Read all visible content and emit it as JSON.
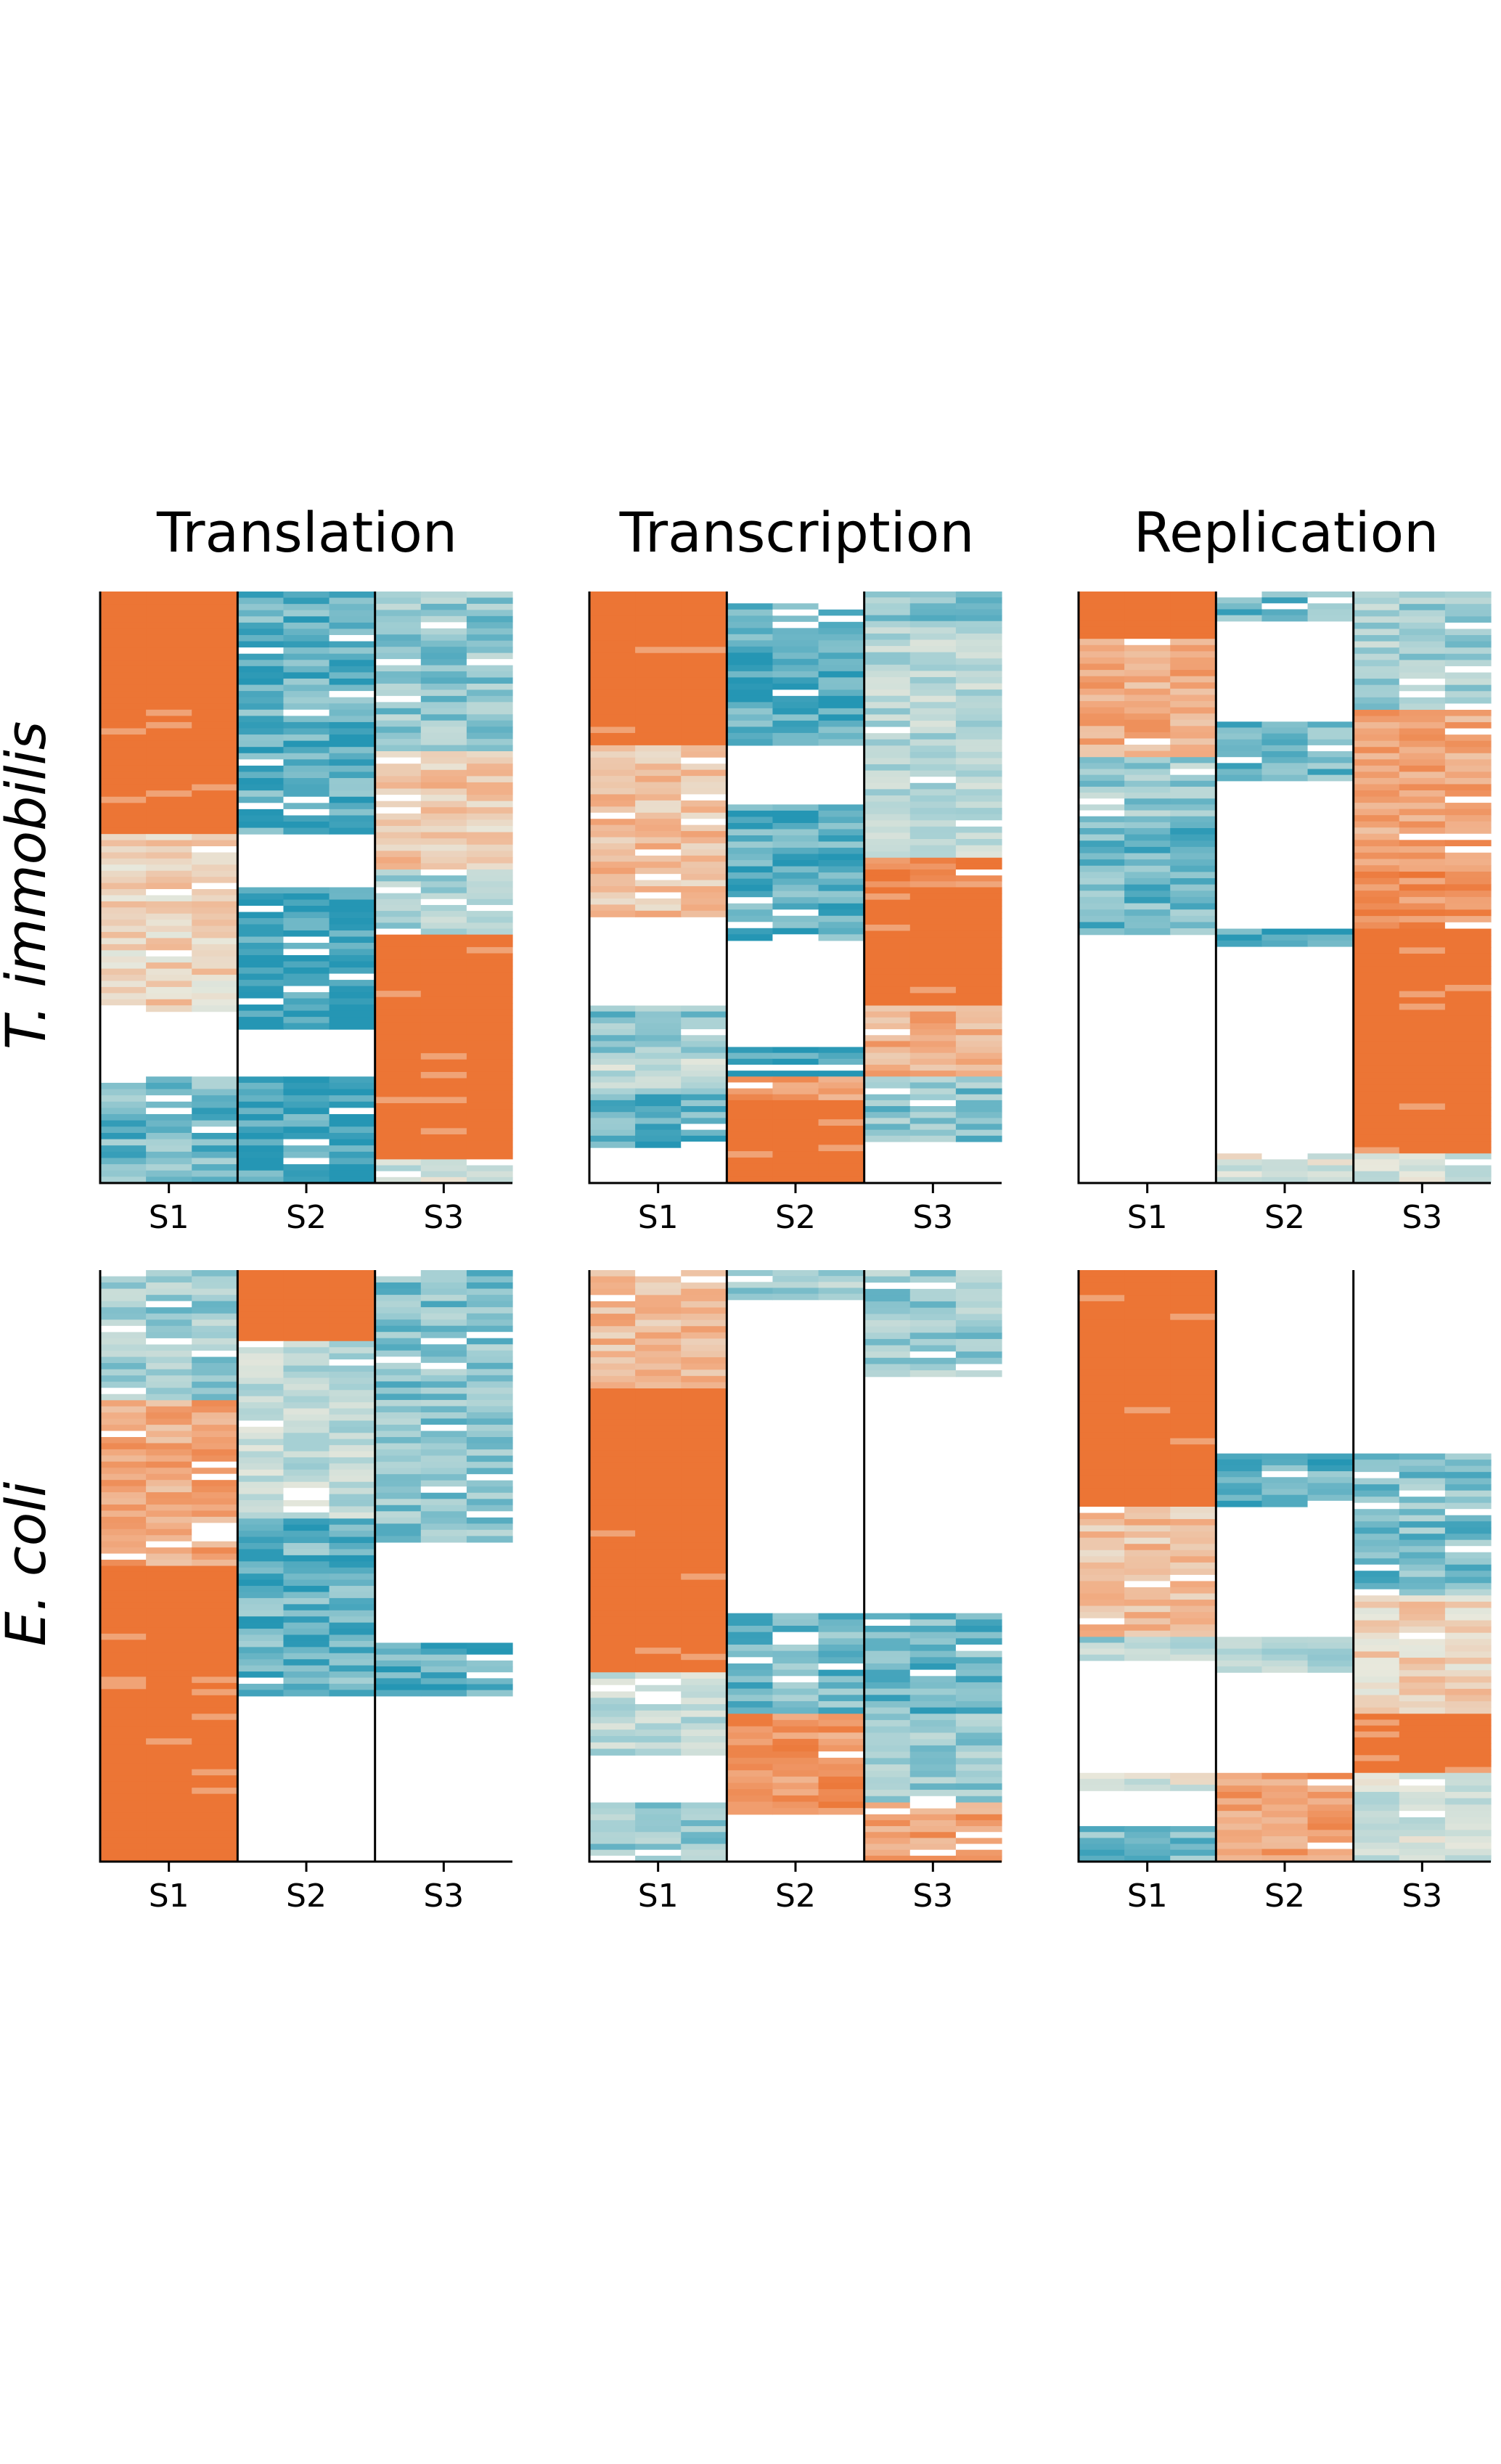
{
  "chart_data": {
    "type": "heatmap",
    "row_labels": [
      "T. immobilis",
      "E. coli"
    ],
    "col_titles": [
      "Translation",
      "Transcription",
      "Replication"
    ],
    "subpanel_labels": [
      "S1",
      "S2",
      "S3"
    ],
    "colors": {
      "high": "#EC7535",
      "mid_high": "#F1AE86",
      "neutral": "#E8E8DC",
      "mid_low": "#A6D0D4",
      "low": "#2596B4",
      "empty": "#FFFFFF"
    },
    "panels": [
      {
        "row_label": "T. immobilis",
        "title": "Translation",
        "tracks": [
          {
            "name": "S1",
            "segments": [
              {
                "from": 0.0,
                "to": 0.41,
                "value": 1.0
              },
              {
                "from": 0.41,
                "to": 0.71,
                "value": 0.2
              },
              {
                "from": 0.71,
                "to": 0.82,
                "value": -2
              },
              {
                "from": 0.82,
                "to": 1.0,
                "value": -0.7
              }
            ]
          },
          {
            "name": "S2",
            "segments": [
              {
                "from": 0.0,
                "to": 0.41,
                "value": -0.8
              },
              {
                "from": 0.41,
                "to": 0.5,
                "value": -2
              },
              {
                "from": 0.5,
                "to": 0.74,
                "value": -0.95
              },
              {
                "from": 0.74,
                "to": 0.82,
                "value": -2
              },
              {
                "from": 0.82,
                "to": 1.0,
                "value": -0.9
              }
            ]
          },
          {
            "name": "S3",
            "segments": [
              {
                "from": 0.0,
                "to": 0.27,
                "value": -0.55
              },
              {
                "from": 0.27,
                "to": 0.47,
                "value": 0.3
              },
              {
                "from": 0.47,
                "to": 0.58,
                "value": -0.4
              },
              {
                "from": 0.58,
                "to": 0.96,
                "value": 1.0
              },
              {
                "from": 0.96,
                "to": 1.0,
                "value": -0.2
              }
            ]
          }
        ]
      },
      {
        "row_label": "T. immobilis",
        "title": "Transcription",
        "tracks": [
          {
            "name": "S1",
            "segments": [
              {
                "from": 0.0,
                "to": 0.26,
                "value": 1.0
              },
              {
                "from": 0.26,
                "to": 0.55,
                "value": 0.35
              },
              {
                "from": 0.55,
                "to": 0.7,
                "value": -2
              },
              {
                "from": 0.7,
                "to": 0.78,
                "value": -0.6
              },
              {
                "from": 0.78,
                "to": 0.85,
                "value": -0.3
              },
              {
                "from": 0.85,
                "to": 0.94,
                "value": -0.8
              },
              {
                "from": 0.94,
                "to": 1.0,
                "value": -2
              }
            ]
          },
          {
            "name": "S2",
            "segments": [
              {
                "from": 0.0,
                "to": 0.02,
                "value": -2
              },
              {
                "from": 0.02,
                "to": 0.26,
                "value": -0.85
              },
              {
                "from": 0.26,
                "to": 0.36,
                "value": -2
              },
              {
                "from": 0.36,
                "to": 0.59,
                "value": -0.8
              },
              {
                "from": 0.59,
                "to": 0.77,
                "value": -2
              },
              {
                "from": 0.77,
                "to": 0.82,
                "value": -0.9
              },
              {
                "from": 0.82,
                "to": 0.86,
                "value": 0.6
              },
              {
                "from": 0.86,
                "to": 1.0,
                "value": 1.0
              }
            ]
          },
          {
            "name": "S3",
            "segments": [
              {
                "from": 0.0,
                "to": 0.05,
                "value": -0.6
              },
              {
                "from": 0.05,
                "to": 0.45,
                "value": -0.35
              },
              {
                "from": 0.45,
                "to": 0.5,
                "value": 0.8
              },
              {
                "from": 0.5,
                "to": 0.7,
                "value": 1.0
              },
              {
                "from": 0.7,
                "to": 0.82,
                "value": 0.5
              },
              {
                "from": 0.82,
                "to": 0.93,
                "value": -0.6
              },
              {
                "from": 0.93,
                "to": 1.0,
                "value": -2
              }
            ]
          }
        ]
      },
      {
        "row_label": "T. immobilis",
        "title": "Replication",
        "tracks": [
          {
            "name": "S1",
            "segments": [
              {
                "from": 0.0,
                "to": 0.08,
                "value": 1.0
              },
              {
                "from": 0.08,
                "to": 0.28,
                "value": 0.5
              },
              {
                "from": 0.28,
                "to": 0.4,
                "value": -0.5
              },
              {
                "from": 0.4,
                "to": 0.58,
                "value": -0.7
              },
              {
                "from": 0.58,
                "to": 1.0,
                "value": -2
              }
            ]
          },
          {
            "name": "S2",
            "segments": [
              {
                "from": 0.0,
                "to": 0.05,
                "value": -0.7
              },
              {
                "from": 0.05,
                "to": 0.22,
                "value": -2
              },
              {
                "from": 0.22,
                "to": 0.32,
                "value": -0.75
              },
              {
                "from": 0.32,
                "to": 0.57,
                "value": -2
              },
              {
                "from": 0.57,
                "to": 0.6,
                "value": -0.9
              },
              {
                "from": 0.6,
                "to": 0.95,
                "value": -2
              },
              {
                "from": 0.95,
                "to": 1.0,
                "value": -0.1
              }
            ]
          },
          {
            "name": "S3",
            "segments": [
              {
                "from": 0.0,
                "to": 0.2,
                "value": -0.45
              },
              {
                "from": 0.2,
                "to": 0.42,
                "value": 0.55
              },
              {
                "from": 0.42,
                "to": 0.57,
                "value": 0.75
              },
              {
                "from": 0.57,
                "to": 0.95,
                "value": 1.0
              },
              {
                "from": 0.95,
                "to": 1.0,
                "value": -0.2
              }
            ]
          }
        ]
      },
      {
        "row_label": "E. coli",
        "title": "Translation",
        "tracks": [
          {
            "name": "S1",
            "segments": [
              {
                "from": 0.0,
                "to": 0.22,
                "value": -0.5
              },
              {
                "from": 0.22,
                "to": 0.5,
                "value": 0.55
              },
              {
                "from": 0.5,
                "to": 1.0,
                "value": 1.0
              }
            ]
          },
          {
            "name": "S2",
            "segments": [
              {
                "from": 0.0,
                "to": 0.12,
                "value": 1.0
              },
              {
                "from": 0.12,
                "to": 0.42,
                "value": -0.3
              },
              {
                "from": 0.42,
                "to": 0.72,
                "value": -0.75
              },
              {
                "from": 0.72,
                "to": 1.0,
                "value": -2
              }
            ]
          },
          {
            "name": "S3",
            "segments": [
              {
                "from": 0.0,
                "to": 0.46,
                "value": -0.6
              },
              {
                "from": 0.46,
                "to": 0.63,
                "value": -2
              },
              {
                "from": 0.63,
                "to": 0.72,
                "value": -0.8
              },
              {
                "from": 0.72,
                "to": 1.0,
                "value": -2
              }
            ]
          }
        ]
      },
      {
        "row_label": "E. coli",
        "title": "Transcription",
        "tracks": [
          {
            "name": "S1",
            "segments": [
              {
                "from": 0.0,
                "to": 0.2,
                "value": 0.4
              },
              {
                "from": 0.2,
                "to": 0.68,
                "value": 1.0
              },
              {
                "from": 0.68,
                "to": 0.82,
                "value": -0.3
              },
              {
                "from": 0.82,
                "to": 0.9,
                "value": -2
              },
              {
                "from": 0.9,
                "to": 1.0,
                "value": -0.5
              }
            ]
          },
          {
            "name": "S2",
            "segments": [
              {
                "from": 0.0,
                "to": 0.05,
                "value": -0.45
              },
              {
                "from": 0.05,
                "to": 0.58,
                "value": -2
              },
              {
                "from": 0.58,
                "to": 0.75,
                "value": -0.7
              },
              {
                "from": 0.75,
                "to": 0.92,
                "value": 0.7
              },
              {
                "from": 0.92,
                "to": 1.0,
                "value": -2
              }
            ]
          },
          {
            "name": "S3",
            "segments": [
              {
                "from": 0.0,
                "to": 0.18,
                "value": -0.5
              },
              {
                "from": 0.18,
                "to": 0.58,
                "value": -2
              },
              {
                "from": 0.58,
                "to": 0.75,
                "value": -0.7
              },
              {
                "from": 0.75,
                "to": 0.9,
                "value": -0.55
              },
              {
                "from": 0.9,
                "to": 1.0,
                "value": 0.6
              }
            ]
          }
        ]
      },
      {
        "row_label": "E. coli",
        "title": "Replication",
        "tracks": [
          {
            "name": "S1",
            "segments": [
              {
                "from": 0.0,
                "to": 0.4,
                "value": 1.0
              },
              {
                "from": 0.4,
                "to": 0.62,
                "value": 0.35
              },
              {
                "from": 0.62,
                "to": 0.66,
                "value": -0.4
              },
              {
                "from": 0.66,
                "to": 0.85,
                "value": -2
              },
              {
                "from": 0.85,
                "to": 0.88,
                "value": -0.1
              },
              {
                "from": 0.88,
                "to": 0.94,
                "value": -2
              },
              {
                "from": 0.94,
                "to": 1.0,
                "value": -0.7
              }
            ]
          },
          {
            "name": "S2",
            "segments": [
              {
                "from": 0.0,
                "to": 0.31,
                "value": -2
              },
              {
                "from": 0.31,
                "to": 0.4,
                "value": -0.8
              },
              {
                "from": 0.4,
                "to": 0.62,
                "value": -2
              },
              {
                "from": 0.62,
                "to": 0.68,
                "value": -0.4
              },
              {
                "from": 0.68,
                "to": 0.85,
                "value": -2
              },
              {
                "from": 0.85,
                "to": 1.0,
                "value": 0.6
              }
            ]
          },
          {
            "name": "S3",
            "segments": [
              {
                "from": 0.0,
                "to": 0.31,
                "value": -2
              },
              {
                "from": 0.31,
                "to": 0.55,
                "value": -0.65
              },
              {
                "from": 0.55,
                "to": 0.75,
                "value": 0.2
              },
              {
                "from": 0.75,
                "to": 0.85,
                "value": 1.0
              },
              {
                "from": 0.85,
                "to": 1.0,
                "value": -0.2
              }
            ]
          }
        ]
      }
    ]
  }
}
